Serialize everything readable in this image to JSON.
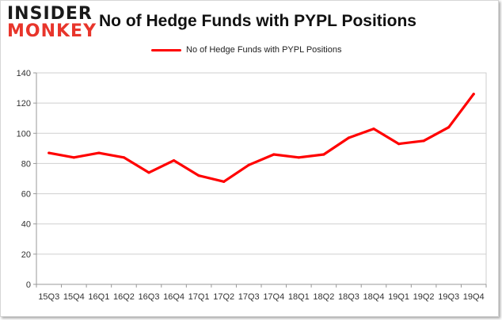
{
  "logo": {
    "line1": "INSIDER",
    "line2": "MONKEY"
  },
  "chart_data": {
    "type": "line",
    "title": "No of Hedge Funds with PYPL Positions",
    "xlabel": "",
    "ylabel": "",
    "categories": [
      "15Q3",
      "15Q4",
      "16Q1",
      "16Q2",
      "16Q3",
      "16Q4",
      "17Q1",
      "17Q2",
      "17Q3",
      "17Q4",
      "18Q1",
      "18Q2",
      "18Q3",
      "18Q4",
      "19Q1",
      "19Q2",
      "19Q3",
      "19Q4"
    ],
    "series": [
      {
        "name": "No of Hedge Funds with PYPL Positions",
        "color": "#ff0000",
        "values": [
          87,
          84,
          87,
          84,
          74,
          82,
          72,
          68,
          79,
          86,
          84,
          86,
          97,
          103,
          93,
          95,
          104,
          126
        ]
      }
    ],
    "ylim": [
      0,
      140
    ],
    "yticks": [
      0,
      20,
      40,
      60,
      80,
      100,
      120,
      140
    ],
    "grid": true,
    "legend": "top-center"
  }
}
